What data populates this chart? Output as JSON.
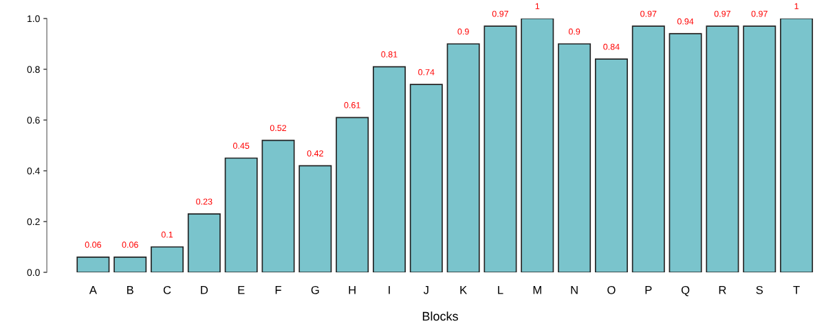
{
  "chart_data": {
    "type": "bar",
    "xlabel": "Blocks",
    "categories": [
      "A",
      "B",
      "C",
      "D",
      "E",
      "F",
      "G",
      "H",
      "I",
      "J",
      "K",
      "L",
      "M",
      "N",
      "O",
      "P",
      "Q",
      "R",
      "S",
      "T"
    ],
    "values": [
      0.06,
      0.06,
      0.1,
      0.23,
      0.45,
      0.52,
      0.42,
      0.61,
      0.81,
      0.74,
      0.9,
      0.97,
      1,
      0.9,
      0.84,
      0.97,
      0.94,
      0.97,
      0.97,
      1
    ],
    "value_labels": [
      "0.06",
      "0.06",
      "0.1",
      "0.23",
      "0.45",
      "0.52",
      "0.42",
      "0.61",
      "0.81",
      "0.74",
      "0.9",
      "0.97",
      "1",
      "0.9",
      "0.84",
      "0.97",
      "0.94",
      "0.97",
      "0.97",
      "1"
    ],
    "color": "#7ac4cc",
    "ylim": [
      0,
      1
    ],
    "yticks": [
      {
        "value": 0,
        "label": "0.0"
      },
      0.2,
      0.4,
      0.6,
      0.8,
      {
        "value": 1,
        "label": "1.0"
      }
    ],
    "grid": false,
    "legend": false
  }
}
